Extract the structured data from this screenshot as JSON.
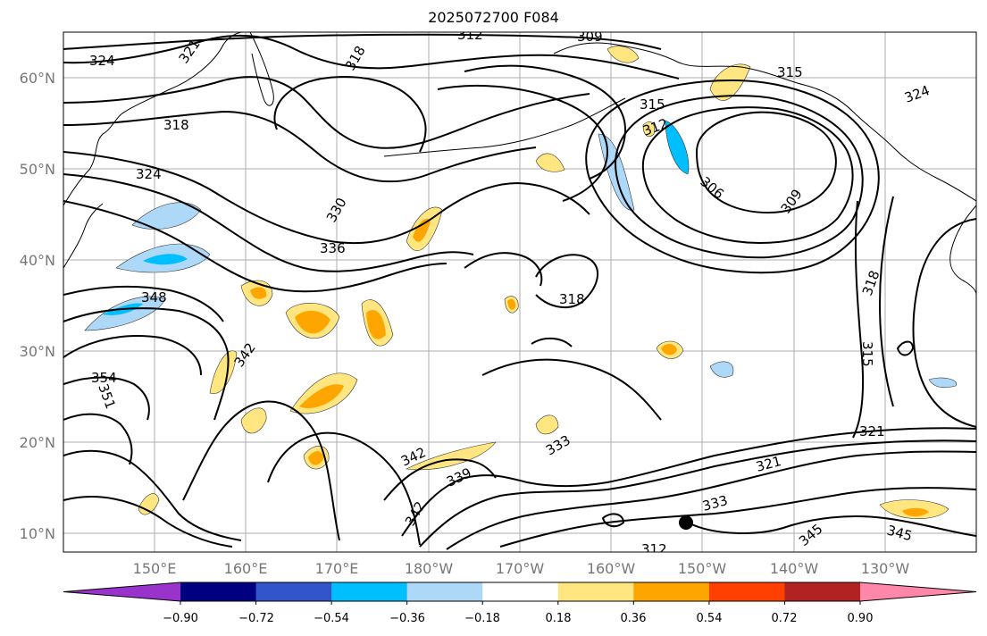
{
  "title": "2025072700 F084",
  "map": {
    "lat_labels": [
      "60°N",
      "50°N",
      "40°N",
      "30°N",
      "20°N",
      "10°N"
    ],
    "lon_labels": [
      "150°E",
      "160°E",
      "170°E",
      "180°W",
      "170°W",
      "160°W",
      "150°W",
      "140°W",
      "130°W"
    ],
    "contour_labels": [
      "324",
      "321",
      "318",
      "318",
      "324",
      "330",
      "336",
      "348",
      "342",
      "354",
      "351",
      "312",
      "309",
      "315",
      "318",
      "315",
      "312",
      "306",
      "309",
      "318",
      "324",
      "318",
      "315",
      "321",
      "321",
      "333",
      "342",
      "339",
      "333",
      "345",
      "345",
      "342",
      "312"
    ],
    "marker": {
      "name": "point-marker",
      "lon": "-151.5",
      "lat": "11.5"
    }
  },
  "colorbar": {
    "tick_labels": [
      "−0.90",
      "−0.72",
      "−0.54",
      "−0.36",
      "−0.18",
      "0.18",
      "0.36",
      "0.54",
      "0.72",
      "0.90"
    ],
    "colors": [
      "#9933cc",
      "#000080",
      "#3355cc",
      "#00bfff",
      "#add8f7",
      "#ffffff",
      "#ffe680",
      "#ffa500",
      "#ff4000",
      "#b22222",
      "#ff88aa"
    ]
  }
}
